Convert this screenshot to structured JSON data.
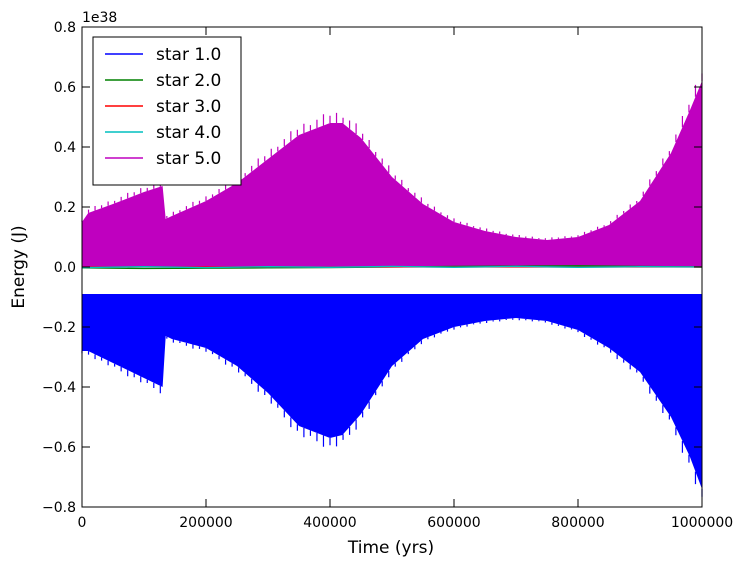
{
  "chart_data": {
    "type": "line",
    "title": "",
    "xlabel": "Time (yrs)",
    "ylabel": "Energy (J)",
    "y_offset_label": "1e38",
    "xlim": [
      0,
      1000000
    ],
    "ylim": [
      -0.8,
      0.8
    ],
    "y_scale_factor": 1e+38,
    "x_ticks": [
      0,
      200000,
      400000,
      600000,
      800000,
      1000000
    ],
    "x_tick_labels": [
      "0",
      "200000",
      "400000",
      "600000",
      "800000",
      "1000000"
    ],
    "y_ticks": [
      -0.8,
      -0.6,
      -0.4,
      -0.2,
      0.0,
      0.2,
      0.4,
      0.6,
      0.8
    ],
    "y_tick_labels": [
      "−0.8",
      "−0.6",
      "−0.4",
      "−0.2",
      "0.0",
      "0.2",
      "0.4",
      "0.6",
      "0.8"
    ],
    "grid": false,
    "legend_position": "top-left",
    "series": [
      {
        "name": "star 1.0",
        "color": "#0000ff",
        "style": "oscillating-band",
        "x": [
          0,
          10000,
          50000,
          100000,
          130000,
          135000,
          145000,
          200000,
          250000,
          300000,
          350000,
          400000,
          420000,
          450000,
          500000,
          550000,
          600000,
          650000,
          700000,
          750000,
          800000,
          850000,
          900000,
          950000,
          980000,
          1000000
        ],
        "upper": [
          -0.09,
          -0.09,
          -0.09,
          -0.09,
          -0.09,
          -0.09,
          -0.09,
          -0.09,
          -0.09,
          -0.09,
          -0.09,
          -0.09,
          -0.09,
          -0.09,
          -0.09,
          -0.09,
          -0.09,
          -0.09,
          -0.09,
          -0.09,
          -0.09,
          -0.09,
          -0.09,
          -0.09,
          -0.09,
          -0.09
        ],
        "lower": [
          -0.28,
          -0.28,
          -0.32,
          -0.37,
          -0.4,
          -0.23,
          -0.24,
          -0.27,
          -0.33,
          -0.42,
          -0.53,
          -0.57,
          -0.56,
          -0.49,
          -0.33,
          -0.24,
          -0.2,
          -0.18,
          -0.17,
          -0.18,
          -0.21,
          -0.27,
          -0.35,
          -0.5,
          -0.63,
          -0.74
        ]
      },
      {
        "name": "star 2.0",
        "color": "#008000",
        "style": "line",
        "x": [
          0,
          100000,
          200000,
          300000,
          400000,
          500000,
          600000,
          700000,
          800000,
          900000,
          1000000
        ],
        "y": [
          -0.003,
          -0.005,
          -0.004,
          -0.003,
          -0.002,
          0.0,
          0.002,
          0.003,
          0.004,
          0.002,
          0.0
        ]
      },
      {
        "name": "star 3.0",
        "color": "#ff0000",
        "style": "line",
        "x": [
          0,
          200000,
          400000,
          600000,
          800000,
          1000000
        ],
        "y": [
          0.0,
          0.0,
          0.0,
          0.0,
          0.0,
          0.0
        ]
      },
      {
        "name": "star 4.0",
        "color": "#00bfbf",
        "style": "line",
        "x": [
          0,
          100000,
          200000,
          300000,
          400000,
          500000,
          600000,
          700000,
          800000,
          900000,
          1000000
        ],
        "y": [
          -0.002,
          0.001,
          -0.002,
          0.001,
          -0.001,
          0.002,
          -0.001,
          0.002,
          -0.001,
          0.001,
          0.0
        ]
      },
      {
        "name": "star 5.0",
        "color": "#bf00bf",
        "style": "oscillating-band",
        "x": [
          0,
          10000,
          50000,
          100000,
          130000,
          135000,
          145000,
          200000,
          250000,
          300000,
          350000,
          400000,
          420000,
          450000,
          500000,
          550000,
          600000,
          650000,
          700000,
          750000,
          800000,
          850000,
          900000,
          950000,
          980000,
          1000000
        ],
        "lower": [
          0.0,
          0.0,
          0.0,
          0.0,
          0.0,
          0.0,
          0.0,
          0.0,
          0.0,
          0.0,
          0.0,
          0.0,
          0.0,
          0.0,
          0.0,
          0.0,
          0.0,
          0.0,
          0.0,
          0.0,
          0.0,
          0.0,
          0.0,
          0.0,
          0.0,
          0.0
        ],
        "upper": [
          0.15,
          0.18,
          0.21,
          0.25,
          0.27,
          0.16,
          0.17,
          0.22,
          0.28,
          0.36,
          0.44,
          0.48,
          0.48,
          0.43,
          0.3,
          0.21,
          0.15,
          0.12,
          0.1,
          0.09,
          0.1,
          0.14,
          0.22,
          0.38,
          0.52,
          0.62
        ]
      }
    ]
  }
}
